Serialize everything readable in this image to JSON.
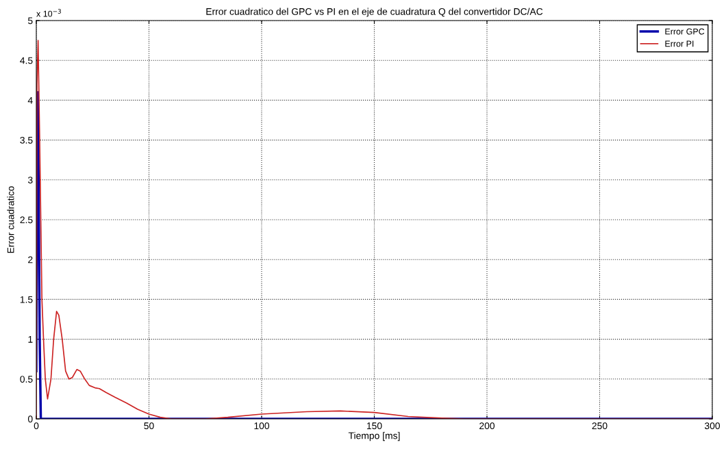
{
  "chart_data": {
    "type": "line",
    "title": "Error cuadratico del GPC vs PI en el eje de cuadratura Q del convertidor DC/AC",
    "xlabel": "Tiempo [ms]",
    "ylabel": "Error cuadratico",
    "annotations": [
      "x 10$^{−3}$"
    ],
    "xlim": [
      0,
      300
    ],
    "xticks": [
      0,
      50,
      100,
      150,
      200,
      250,
      300
    ],
    "ylim": [
      0,
      5
    ],
    "yticks": [
      0,
      0.5,
      1,
      1.5,
      2,
      2.5,
      3,
      3.5,
      4,
      4.5,
      5
    ],
    "grid": true,
    "legend": "top right",
    "line_style": "solid",
    "marker": "none",
    "series": [
      {
        "name": "Error GPC",
        "color": "#0000aa",
        "x": [
          0,
          0.3,
          0.6,
          1.0,
          1.5,
          2,
          300
        ],
        "values": [
          0.6,
          3.0,
          4.1,
          3.0,
          1.0,
          0,
          0
        ]
      },
      {
        "name": "Error PI",
        "color": "#cc2222",
        "x": [
          0,
          0.3,
          0.8,
          1.5,
          2.5,
          3.2,
          4,
          5,
          6.5,
          7.7,
          9,
          10,
          11.5,
          13,
          14.5,
          16,
          18,
          19.5,
          21.5,
          23.5,
          26,
          28,
          31,
          35,
          40,
          45,
          50,
          55,
          60,
          75,
          85,
          100,
          120,
          135,
          150,
          165,
          180,
          190,
          300
        ],
        "values": [
          0,
          4.2,
          4.75,
          3.5,
          1.5,
          1.0,
          0.5,
          0.25,
          0.5,
          1.0,
          1.35,
          1.3,
          1.0,
          0.6,
          0.5,
          0.52,
          0.62,
          0.6,
          0.5,
          0.42,
          0.39,
          0.38,
          0.33,
          0.27,
          0.2,
          0.12,
          0.06,
          0.02,
          0,
          0,
          0.02,
          0.06,
          0.09,
          0.1,
          0.08,
          0.03,
          0.01,
          0,
          0
        ]
      }
    ]
  }
}
